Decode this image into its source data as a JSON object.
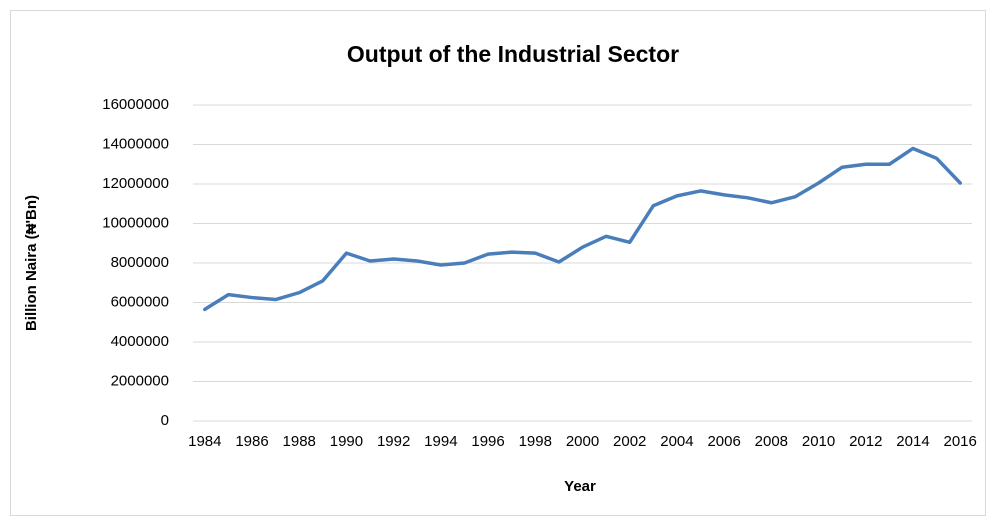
{
  "chart_data": {
    "type": "line",
    "title": "Output of the Industrial Sector",
    "x_label": "Year",
    "y_label": "Billion Naira (₦'Bn)",
    "categories": [
      "1984",
      null,
      "1986",
      null,
      "1988",
      null,
      "1990",
      null,
      "1992",
      null,
      "1994",
      null,
      "1996",
      null,
      "1998",
      null,
      "2000",
      null,
      "2002",
      null,
      "2004",
      null,
      "2006",
      null,
      "2008",
      null,
      "2010",
      null,
      "2012",
      null,
      "2014",
      null,
      "2016"
    ],
    "series": [
      {
        "color": "#4a7ebb",
        "values": [
          5650000,
          6400000,
          6250000,
          6150000,
          6500000,
          7100000,
          8500000,
          8100000,
          8200000,
          8100000,
          7900000,
          8000000,
          8450000,
          8550000,
          8500000,
          8050000,
          8800000,
          9350000,
          9050000,
          10900000,
          11400000,
          11650000,
          11450000,
          11300000,
          11050000,
          11350000,
          12050000,
          12850000,
          13000000,
          13000000,
          13800000,
          13300000,
          12050000
        ]
      }
    ],
    "ylim": [
      0,
      16000000
    ],
    "yticks": [
      0,
      2000000,
      4000000,
      6000000,
      8000000,
      10000000,
      12000000,
      14000000,
      16000000
    ],
    "grid": true
  }
}
